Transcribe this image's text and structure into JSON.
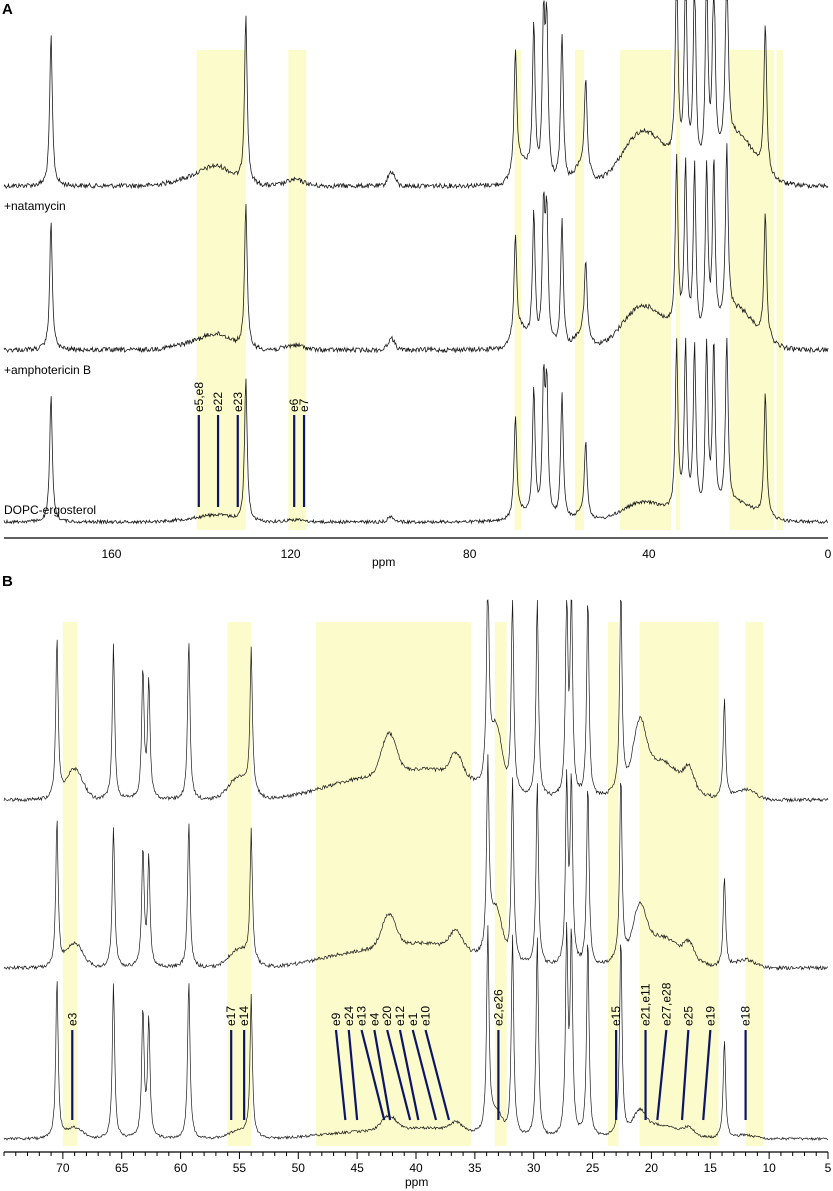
{
  "colors": {
    "highlight": "#fbfbcc",
    "trace": "#1a1a1a",
    "assignment_line": "#0d1566"
  },
  "chart_data": [
    {
      "type": "line",
      "panel_label": "A",
      "xlabel": "ppm",
      "x_reversed": true,
      "xlim": [
        184,
        0
      ],
      "xticks": [
        160,
        120,
        80,
        40,
        0
      ],
      "series": [
        {
          "name": "+natamycin"
        },
        {
          "name": "+amphotericin B"
        },
        {
          "name": "DOPC-ergosterol"
        }
      ],
      "highlight_ranges_ppm": [
        [
          130,
          141
        ],
        [
          116.5,
          120.5
        ],
        [
          68.5,
          70
        ],
        [
          54.5,
          56.5
        ],
        [
          35,
          46.5
        ],
        [
          33,
          34
        ],
        [
          12,
          22
        ],
        [
          10,
          11.5
        ]
      ],
      "peaks_ppm": [
        173.5,
        130,
        69.8,
        65.7,
        63.5,
        62.8,
        59.4,
        54.1,
        33.8,
        31.8,
        29.8,
        27.1,
        25.5,
        22.6,
        14.0
      ],
      "assignments": [
        {
          "label": "e5,e8",
          "ppm": 140.5
        },
        {
          "label": "e22",
          "ppm": 136.2
        },
        {
          "label": "e23",
          "ppm": 131.8
        },
        {
          "label": "e6",
          "ppm": 119.2
        },
        {
          "label": "e7",
          "ppm": 117.0
        }
      ]
    },
    {
      "type": "line",
      "panel_label": "B",
      "xlabel": "ppm",
      "x_reversed": true,
      "xlim": [
        75,
        5
      ],
      "xticks": [
        70,
        65,
        60,
        55,
        50,
        45,
        40,
        35,
        30,
        25,
        20,
        15,
        10,
        5
      ],
      "series": [
        {
          "name": "+natamycin"
        },
        {
          "name": "+amphotericin B"
        },
        {
          "name": "DOPC-ergosterol"
        }
      ],
      "highlight_ranges_ppm": [
        [
          68.8,
          70
        ],
        [
          54,
          56
        ],
        [
          35.3,
          48.5
        ],
        [
          32.3,
          33.3
        ],
        [
          22.8,
          23.7
        ],
        [
          14.3,
          21
        ],
        [
          10.5,
          12
        ]
      ],
      "peaks_ppm": [
        70.5,
        65.7,
        63.2,
        62.7,
        59.3,
        54.0,
        33.9,
        31.8,
        29.7,
        27.2,
        26.8,
        25.4,
        22.6,
        13.8
      ],
      "assignments": [
        {
          "label": "e3",
          "ppm": 69.2
        },
        {
          "label": "e17",
          "ppm": 55.7
        },
        {
          "label": "e14",
          "ppm": 54.6
        },
        {
          "label": "e9",
          "ppm": 46.0
        },
        {
          "label": "e24",
          "ppm": 45.0
        },
        {
          "label": "e13",
          "ppm": 42.7
        },
        {
          "label": "e4",
          "ppm": 42.2
        },
        {
          "label": "e20",
          "ppm": 40.5
        },
        {
          "label": "e12",
          "ppm": 39.8
        },
        {
          "label": "e1",
          "ppm": 38.3
        },
        {
          "label": "e10",
          "ppm": 37.2
        },
        {
          "label": "e2,e26",
          "ppm": 33.0
        },
        {
          "label": "e15",
          "ppm": 23.0
        },
        {
          "label": "e21,e11",
          "ppm": 20.5
        },
        {
          "label": "e27,e28",
          "ppm": 19.5
        },
        {
          "label": "e25",
          "ppm": 17.4
        },
        {
          "label": "e19",
          "ppm": 15.6
        },
        {
          "label": "e18",
          "ppm": 12.0
        }
      ]
    }
  ]
}
